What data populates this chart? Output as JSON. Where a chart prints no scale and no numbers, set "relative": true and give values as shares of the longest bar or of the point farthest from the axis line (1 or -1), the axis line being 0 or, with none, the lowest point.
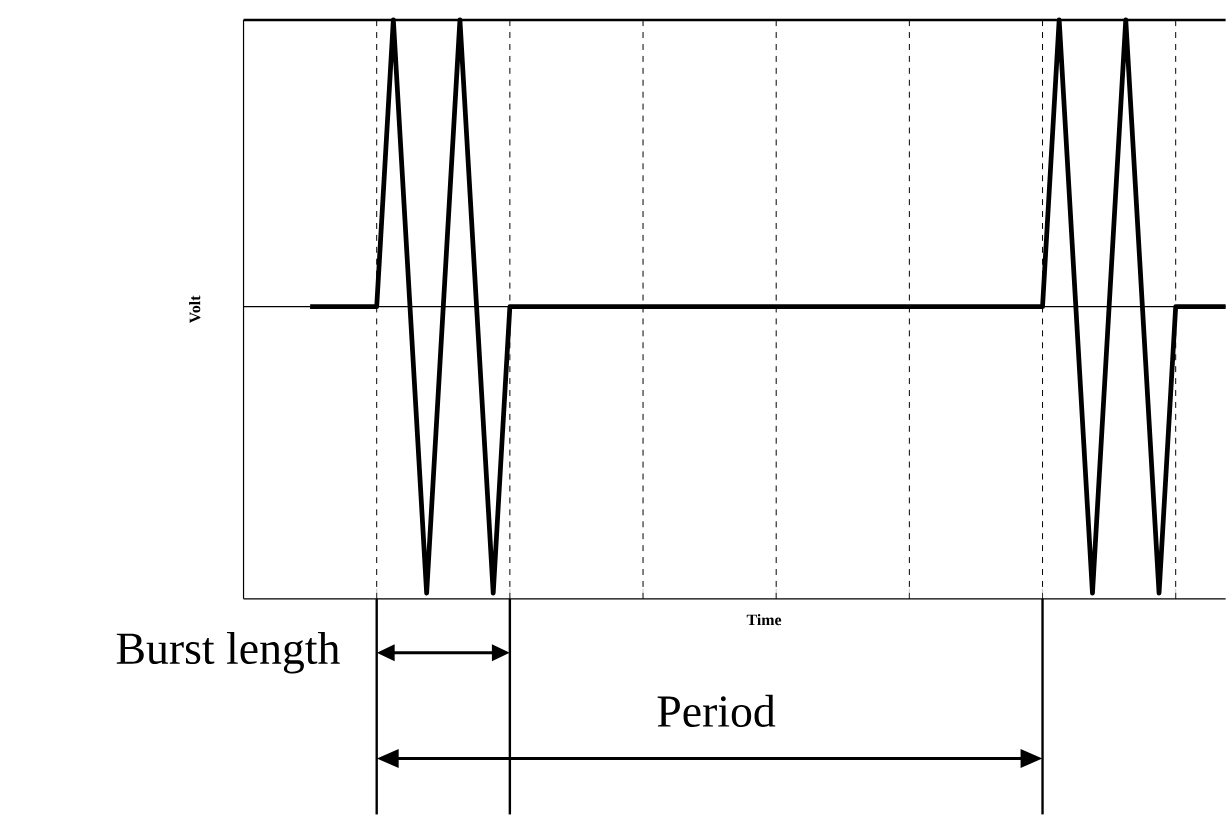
{
  "chart_data": {
    "type": "line",
    "relative": true,
    "xlabel": "Time",
    "ylabel": "Volt",
    "categories": [
      null,
      null,
      null,
      null,
      null,
      null,
      null,
      null,
      null,
      null,
      null,
      null,
      null,
      null,
      null,
      null,
      null,
      null,
      null,
      null,
      null,
      null,
      null,
      null,
      null,
      null,
      null,
      null,
      null,
      null,
      null,
      null,
      null,
      null,
      null,
      null,
      null,
      null,
      null,
      null,
      null,
      null,
      null,
      null,
      null,
      null,
      null,
      null,
      null,
      null,
      null,
      null,
      null,
      null,
      null,
      null,
      null,
      null,
      null,
      null
    ],
    "grid": "x",
    "marker": "none",
    "line_style": "solid",
    "series": [
      {
        "color": "#000000",
        "values": [
          null,
          null,
          null,
          null,
          0,
          0,
          0,
          0,
          0,
          1,
          0,
          -1,
          0,
          1,
          0,
          -1,
          0,
          0,
          0,
          0,
          0,
          0,
          0,
          0,
          0,
          0,
          0,
          0,
          0,
          0,
          0,
          0,
          0,
          0,
          0,
          0,
          0,
          0,
          0,
          0,
          0,
          0,
          0,
          0,
          0,
          0,
          0,
          0,
          0,
          1,
          0,
          -1,
          0,
          1,
          0,
          -1,
          0,
          0,
          0,
          0
        ]
      }
    ],
    "annotations": [
      "Burst length",
      "Period"
    ]
  }
}
